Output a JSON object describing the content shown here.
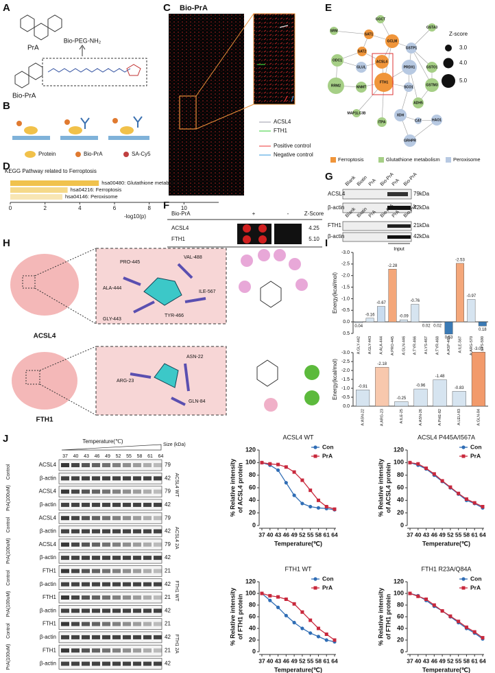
{
  "panel_labels": [
    "A",
    "B",
    "C",
    "D",
    "E",
    "F",
    "G",
    "H",
    "I",
    "J"
  ],
  "panel_a": {
    "compound": "PrA",
    "linker": "Bio-PEG-NH₂",
    "probe": "Bio-PrA"
  },
  "panel_b": {
    "legend": [
      "Protein",
      "Bio-PrA",
      "SA-Cy5"
    ]
  },
  "panel_c": {
    "title": "Bio-PrA",
    "legend": [
      "ACSL4",
      "FTH1",
      "Positive control",
      "Negative control"
    ]
  },
  "panel_e": {
    "nodes": [
      "GGCT",
      "SRM",
      "SAT1",
      "GCLM",
      "GSTA3",
      "SAT2",
      "ODC1",
      "GLUL",
      "ACSL4",
      "GSTP1",
      "PRDX1",
      "GSTO1",
      "GSTM3",
      "RRM2",
      "NNMT",
      "FTH1",
      "SCO1",
      "ADH5",
      "MAP1LC3B",
      "ITPA",
      "XDH",
      "CAT",
      "HAO1",
      "GRHPR"
    ],
    "size_title": "Z-score",
    "size_legend": [
      "3.0",
      "4.0",
      "5.0"
    ],
    "legend": [
      "Ferroptosis",
      "Glutathione metabolism",
      "Peroxisome"
    ]
  },
  "panel_f": {
    "header": [
      "Bio-PrA",
      "+",
      "-",
      "Z-Score"
    ],
    "rows": [
      [
        "ACSL4",
        "4.25"
      ],
      [
        "FTH1",
        "5.10"
      ]
    ]
  },
  "panel_g": {
    "lanes": [
      "Blank",
      "Biotin",
      "PrA",
      "Bio-PrA",
      "PrA",
      "Bio-PrA"
    ],
    "rows": [
      [
        "ACSL4",
        "79kDa"
      ],
      [
        "β-actin",
        "42kDa"
      ],
      [
        "FTH1",
        "21kDa"
      ],
      [
        "β-actin",
        "42kDa"
      ]
    ],
    "input": "Input"
  },
  "panel_h": {
    "proteins": [
      "ACSL4",
      "FTH1"
    ],
    "acsl4_residues": [
      "PRO-445",
      "VAL-488",
      "ALA-444",
      "ILE-567",
      "GLY-443",
      "TYR-466"
    ],
    "fth1_residues": [
      "ASN-22",
      "ARG-23",
      "GLN-84"
    ]
  },
  "panel_j": {
    "header": "Temperature(℃)",
    "temps": [
      "37",
      "40",
      "43",
      "46",
      "49",
      "52",
      "55",
      "58",
      "61",
      "64"
    ],
    "size": "Size (kDa)",
    "groups": [
      {
        "name": "ACSL4 WT",
        "conditions": [
          "Control",
          "PrA(100uM)"
        ],
        "rows": [
          [
            "ACSL4",
            "79"
          ],
          [
            "β-actin",
            "42"
          ],
          [
            "ACSL4",
            "79"
          ],
          [
            "β-actin",
            "42"
          ]
        ]
      },
      {
        "name": "ACSL4 2A",
        "conditions": [
          "Control",
          "PrA(100uM)"
        ],
        "rows": [
          [
            "ACSL4",
            "79"
          ],
          [
            "β-actin",
            "42"
          ],
          [
            "ACSL4",
            "79"
          ],
          [
            "β-actin",
            "42"
          ]
        ]
      },
      {
        "name": "FTH1 WT",
        "conditions": [
          "Control",
          "PrA(100uM)"
        ],
        "rows": [
          [
            "FTH1",
            "21"
          ],
          [
            "β-actin",
            "42"
          ],
          [
            "FTH1",
            "21"
          ],
          [
            "β-actin",
            "42"
          ]
        ]
      },
      {
        "name": "FTH1 2A",
        "conditions": [
          "Control",
          "PrA(100uM)"
        ],
        "rows": [
          [
            "FTH1",
            "21"
          ],
          [
            "β-actin",
            "42"
          ],
          [
            "FTH1",
            "21"
          ],
          [
            "β-actin",
            "42"
          ]
        ]
      }
    ]
  },
  "chart_data": [
    {
      "type": "barh",
      "title": "KEGG Pathway related to Ferroptosis",
      "categories": [
        "hsa00480: Glutathione metabolism",
        "hsa04216: Ferroptosis",
        "hsa04146: Peroxisome"
      ],
      "values": [
        5.1,
        3.3,
        3.0
      ],
      "colors": [
        "#f0c24d",
        "#f5d98a",
        "#f8e6b4"
      ],
      "xlim": [
        0,
        12
      ],
      "xticks": [
        0,
        2,
        4,
        6,
        8,
        10
      ],
      "xlabel": "-log10(p)"
    },
    {
      "type": "bar",
      "ylabel": "Energy(kcal/mol)",
      "categories": [
        "A:GLY-442",
        "A:GLY-443",
        "A:ALA-444",
        "A:PRO-445",
        "A:GLN-446",
        "A:TYR-466",
        "A:LYS-467",
        "A:TYR-468",
        "A:ASP-469",
        "A:ILE-567",
        "A:ARG-570",
        "A:LYS-590"
      ],
      "values": [
        0.04,
        -0.16,
        -0.67,
        -2.28,
        -0.09,
        -0.76,
        0.02,
        0.02,
        0.53,
        -2.53,
        -0.97,
        0.18
      ],
      "value_labels": [
        "0.04",
        "-0.16",
        "-0.67",
        "-2.28",
        "-0.09",
        "-0.76",
        "0.02",
        "0.02",
        "0.53",
        "-2.53",
        "-0.97",
        "0.18"
      ],
      "colors": [
        "#d6e4f0",
        "#d6e4f0",
        "#c9dcef",
        "#f4a77a",
        "#d6e4f0",
        "#d6e4f0",
        "#3a7ab5",
        "#3a7ab5",
        "#3a7ab5",
        "#f4a77a",
        "#d6e4f0",
        "#3a7ab5"
      ],
      "ylim": [
        0.5,
        -3
      ],
      "yticks": [
        0.5,
        {
          "value": 0,
          "label": "0.0"
        },
        -0.5,
        {
          "value": -1,
          "label": "-1.0"
        },
        -1.5,
        {
          "value": -2,
          "label": "-2.0"
        },
        -2.5,
        {
          "value": -3,
          "label": "-3.0"
        }
      ]
    },
    {
      "type": "bar",
      "ylabel": "Energy(kcal/mol)",
      "categories": [
        "A:ASN-22",
        "A:ARG-23",
        "A:ILE-25",
        "A:ASN-26",
        "A:PHE-82",
        "A:LEU-83",
        "A:GLN-84"
      ],
      "values": [
        -0.91,
        -2.18,
        -0.25,
        -0.96,
        -1.48,
        -0.83,
        -3.03
      ],
      "value_labels": [
        "-0.91",
        "-2.18",
        "-0.25",
        "-0.96",
        "-1.48",
        "-0.83",
        "-3.03"
      ],
      "colors": [
        "#d6e4f0",
        "#f8c8ad",
        "#d6e4f0",
        "#d6e4f0",
        "#d6e4f0",
        "#d6e4f0",
        "#f29a6b"
      ],
      "ylim": [
        0,
        -3
      ],
      "yticks": [
        {
          "value": 0,
          "label": "0.0"
        },
        -0.5,
        {
          "value": -1,
          "label": "-1.0"
        },
        -1.5,
        {
          "value": -2,
          "label": "-2.0"
        },
        -2.5,
        {
          "value": -3,
          "label": "-3.0"
        }
      ]
    },
    {
      "type": "line",
      "title": "ACSL4 WT",
      "x": [
        37,
        40,
        43,
        46,
        49,
        52,
        55,
        58,
        61,
        64
      ],
      "xlim": [
        37,
        64
      ],
      "xticks": [
        37,
        40,
        43,
        46,
        49,
        52,
        55,
        58,
        61,
        64
      ],
      "xlabel": "Temperature(℃)",
      "ylabel": [
        "% Relative intensity",
        "of ACSL4 protein"
      ],
      "ylim": [
        0,
        120
      ],
      "yticks": [
        0,
        20,
        40,
        60,
        80,
        100,
        120
      ],
      "legend": "upper right",
      "series": [
        {
          "name": "Con",
          "color": "#2f6db5",
          "marker": "circle",
          "values": [
            100,
            96,
            88,
            68,
            48,
            35,
            30,
            28,
            27,
            25
          ]
        },
        {
          "name": "PrA",
          "color": "#c8283c",
          "marker": "square",
          "values": [
            100,
            98,
            97,
            93,
            85,
            72,
            56,
            40,
            30,
            26
          ]
        }
      ]
    },
    {
      "type": "line",
      "title": "ACSL4 P445A/I567A",
      "x": [
        37,
        40,
        43,
        46,
        49,
        52,
        55,
        58,
        61,
        64
      ],
      "xlim": [
        37,
        64
      ],
      "xticks": [
        37,
        40,
        43,
        46,
        49,
        52,
        55,
        58,
        61,
        64
      ],
      "xlabel": "Temperature(℃)",
      "ylabel": [
        "% Relative intensity",
        "of ACSL4 protein"
      ],
      "ylim": [
        0,
        120
      ],
      "yticks": [
        0,
        20,
        40,
        60,
        80,
        100,
        120
      ],
      "legend": "upper right",
      "series": [
        {
          "name": "Con",
          "color": "#2f6db5",
          "marker": "circle",
          "values": [
            100,
            96,
            90,
            80,
            70,
            60,
            50,
            40,
            35,
            28
          ]
        },
        {
          "name": "PrA",
          "color": "#c8283c",
          "marker": "square",
          "values": [
            100,
            98,
            91,
            82,
            71,
            61,
            51,
            42,
            36,
            30
          ]
        }
      ]
    },
    {
      "type": "line",
      "title": "FTH1 WT",
      "x": [
        37,
        40,
        43,
        46,
        49,
        52,
        55,
        58,
        61,
        64
      ],
      "xlim": [
        37,
        64
      ],
      "xticks": [
        37,
        40,
        43,
        46,
        49,
        52,
        55,
        58,
        61,
        64
      ],
      "xlabel": "Temperature(℃)",
      "ylabel": [
        "% Relative intensity",
        "of FTH1 protein"
      ],
      "ylim": [
        0,
        120
      ],
      "yticks": [
        0,
        20,
        40,
        60,
        80,
        100,
        120
      ],
      "legend": "upper right",
      "series": [
        {
          "name": "Con",
          "color": "#2f6db5",
          "marker": "circle",
          "values": [
            100,
            88,
            76,
            62,
            50,
            40,
            32,
            26,
            20,
            17
          ]
        },
        {
          "name": "PrA",
          "color": "#c8283c",
          "marker": "square",
          "values": [
            100,
            96,
            94,
            90,
            82,
            68,
            54,
            40,
            30,
            20
          ]
        }
      ]
    },
    {
      "type": "line",
      "title": "FTH1 R23A/Q84A",
      "x": [
        37,
        40,
        43,
        46,
        49,
        52,
        55,
        58,
        61,
        64
      ],
      "xlim": [
        37,
        64
      ],
      "xticks": [
        37,
        40,
        43,
        46,
        49,
        52,
        55,
        58,
        61,
        64
      ],
      "xlabel": "Temperature(℃)",
      "ylabel": [
        "% Relative intensity",
        "of FTH1 protein"
      ],
      "ylim": [
        0,
        120
      ],
      "yticks": [
        0,
        20,
        40,
        60,
        80,
        100,
        120
      ],
      "legend": "upper right",
      "series": [
        {
          "name": "Con",
          "color": "#2f6db5",
          "marker": "circle",
          "values": [
            100,
            96,
            88,
            78,
            70,
            60,
            50,
            40,
            32,
            22
          ]
        },
        {
          "name": "PrA",
          "color": "#c8283c",
          "marker": "square",
          "values": [
            100,
            95,
            90,
            80,
            70,
            61,
            52,
            42,
            34,
            24
          ]
        }
      ]
    }
  ]
}
